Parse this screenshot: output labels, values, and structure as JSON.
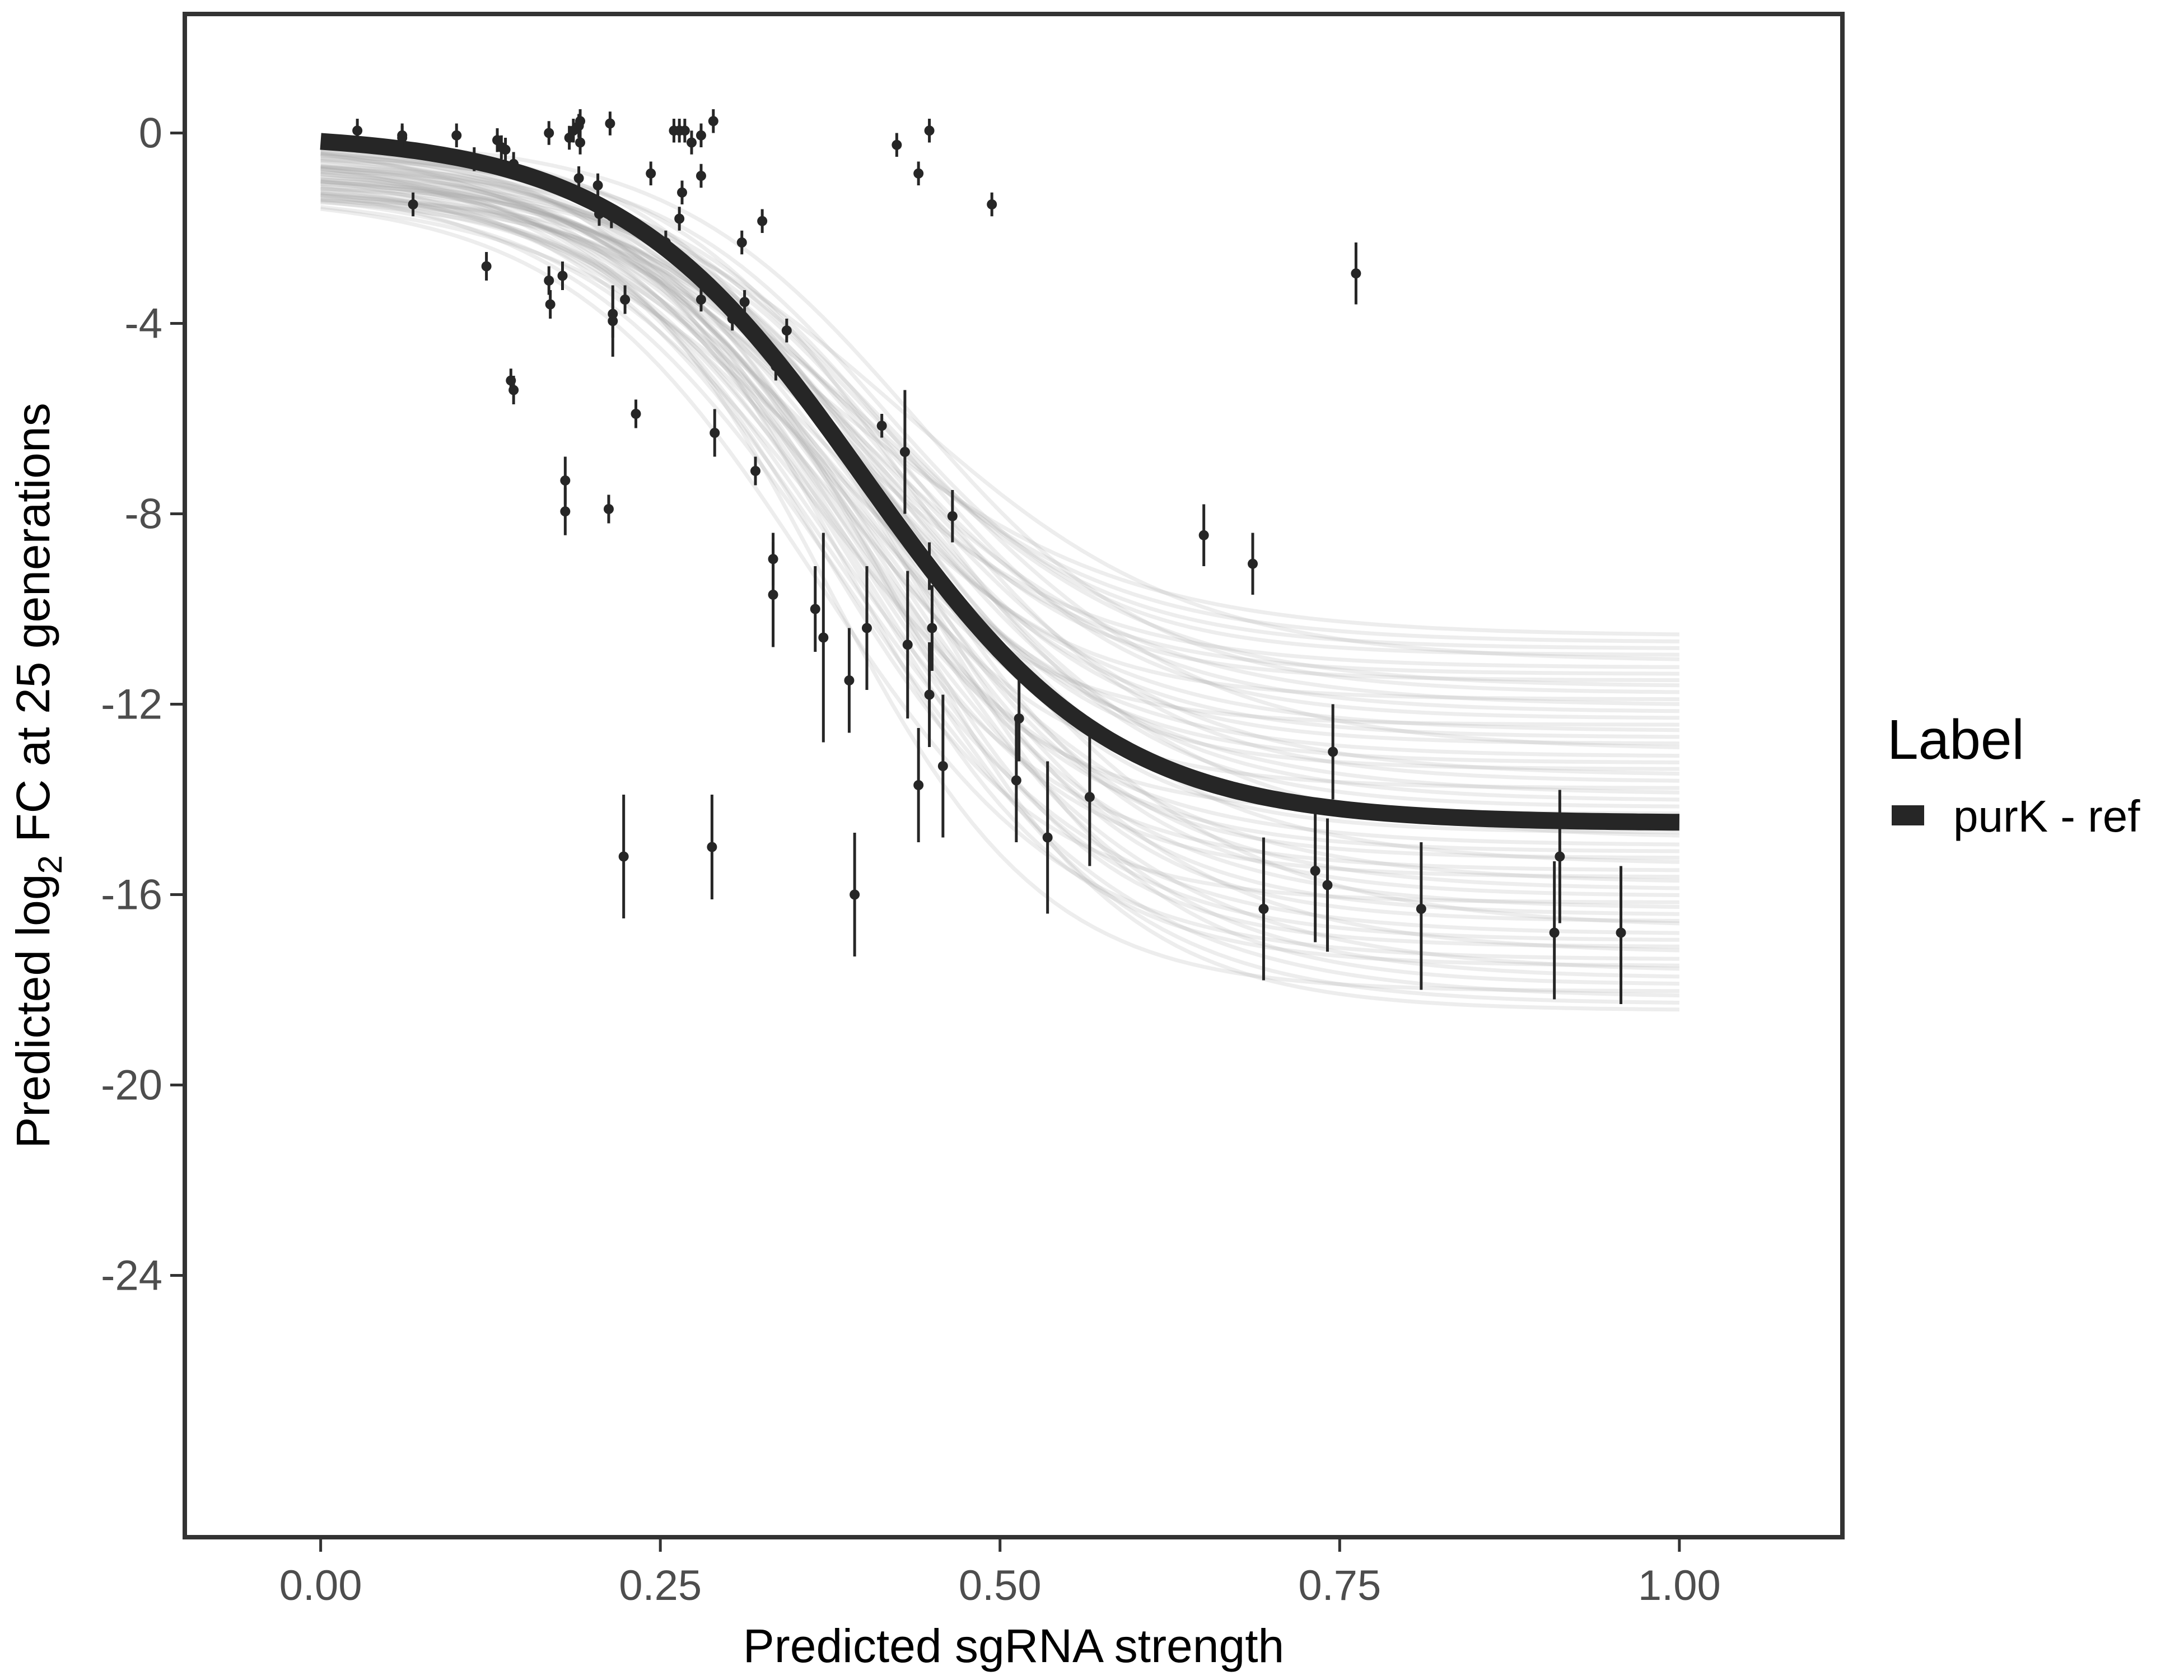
{
  "chart_data": {
    "type": "scatter",
    "title": "",
    "xlabel": "Predicted sgRNA strength",
    "ylabel_prefix": "Predicted  log",
    "ylabel_subscript": "2",
    "ylabel_suffix": " FC at 25 generations",
    "xlim": [
      -0.1,
      1.12
    ],
    "ylim": [
      -29.5,
      2.5
    ],
    "x_ticks": [
      0,
      0.25,
      0.5,
      0.75,
      1
    ],
    "x_tick_labels": [
      "0.00",
      "0.25",
      "0.50",
      "0.75",
      "1.00"
    ],
    "y_ticks": [
      0,
      -4,
      -8,
      -12,
      -16,
      -20,
      -24
    ],
    "y_tick_labels": [
      "0",
      "-4",
      "-8",
      "-12",
      "-16",
      "-20",
      "-24"
    ],
    "grid": false,
    "legend": {
      "title": "Label",
      "position": "right",
      "entries": [
        {
          "label": "purK - ref",
          "color": "#262626"
        }
      ]
    },
    "fit_curve": {
      "name": "purK - ref",
      "color": "#262626",
      "model": "logistic",
      "upper": 0.0,
      "lower": -14.5,
      "midpoint": 0.4,
      "rate": 11.0,
      "x_range": [
        0,
        1
      ]
    },
    "posterior_band": {
      "color": "#a6a6a6",
      "n_curves": 60,
      "lower_at_x1": [
        -10.5,
        -18.5
      ]
    },
    "points": [
      {
        "x": 0.027,
        "y": 0.05,
        "ylo": -0.2,
        "yhi": 0.3
      },
      {
        "x": 0.06,
        "y": -0.05,
        "ylo": -0.3,
        "yhi": 0.2
      },
      {
        "x": 0.06,
        "y": -0.1,
        "ylo": -0.35,
        "yhi": 0.15
      },
      {
        "x": 0.068,
        "y": -1.5,
        "ylo": -1.75,
        "yhi": -1.25
      },
      {
        "x": 0.1,
        "y": -0.05,
        "ylo": -0.3,
        "yhi": 0.2
      },
      {
        "x": 0.113,
        "y": -0.55,
        "ylo": -0.8,
        "yhi": -0.3
      },
      {
        "x": 0.122,
        "y": -2.8,
        "ylo": -3.1,
        "yhi": -2.5
      },
      {
        "x": 0.13,
        "y": -0.15,
        "ylo": -0.4,
        "yhi": 0.1
      },
      {
        "x": 0.133,
        "y": -0.3,
        "ylo": -0.55,
        "yhi": -0.05
      },
      {
        "x": 0.136,
        "y": -0.35,
        "ylo": -0.6,
        "yhi": -0.1
      },
      {
        "x": 0.14,
        "y": -5.2,
        "ylo": -5.45,
        "yhi": -4.95
      },
      {
        "x": 0.142,
        "y": -5.4,
        "ylo": -5.7,
        "yhi": -5.1
      },
      {
        "x": 0.142,
        "y": -0.65,
        "ylo": -0.9,
        "yhi": -0.4
      },
      {
        "x": 0.168,
        "y": 0.0,
        "ylo": -0.25,
        "yhi": 0.25
      },
      {
        "x": 0.168,
        "y": -3.1,
        "ylo": -3.4,
        "yhi": -2.8
      },
      {
        "x": 0.169,
        "y": -3.6,
        "ylo": -3.9,
        "yhi": -3.3
      },
      {
        "x": 0.178,
        "y": -3.0,
        "ylo": -3.3,
        "yhi": -2.7
      },
      {
        "x": 0.18,
        "y": -7.3,
        "ylo": -7.8,
        "yhi": -6.8
      },
      {
        "x": 0.18,
        "y": -7.95,
        "ylo": -8.45,
        "yhi": -7.45
      },
      {
        "x": 0.183,
        "y": -0.1,
        "ylo": -0.35,
        "yhi": 0.15
      },
      {
        "x": 0.186,
        "y": 0.05,
        "ylo": -0.2,
        "yhi": 0.3
      },
      {
        "x": 0.19,
        "y": 0.15,
        "ylo": -0.1,
        "yhi": 0.4
      },
      {
        "x": 0.19,
        "y": -0.95,
        "ylo": -1.2,
        "yhi": -0.7
      },
      {
        "x": 0.191,
        "y": 0.25,
        "ylo": 0.0,
        "yhi": 0.5
      },
      {
        "x": 0.191,
        "y": -0.2,
        "ylo": -0.45,
        "yhi": 0.05
      },
      {
        "x": 0.204,
        "y": -1.1,
        "ylo": -1.35,
        "yhi": -0.85
      },
      {
        "x": 0.205,
        "y": -1.7,
        "ylo": -1.95,
        "yhi": -1.45
      },
      {
        "x": 0.212,
        "y": -7.9,
        "ylo": -8.2,
        "yhi": -7.6
      },
      {
        "x": 0.213,
        "y": 0.2,
        "ylo": -0.05,
        "yhi": 0.45
      },
      {
        "x": 0.214,
        "y": -1.75,
        "ylo": -2.0,
        "yhi": -1.5
      },
      {
        "x": 0.215,
        "y": -3.8,
        "ylo": -4.3,
        "yhi": -3.3
      },
      {
        "x": 0.215,
        "y": -3.95,
        "ylo": -4.7,
        "yhi": -3.2
      },
      {
        "x": 0.223,
        "y": -15.2,
        "ylo": -16.5,
        "yhi": -13.9
      },
      {
        "x": 0.224,
        "y": -3.5,
        "ylo": -3.8,
        "yhi": -3.2
      },
      {
        "x": 0.232,
        "y": -5.9,
        "ylo": -6.2,
        "yhi": -5.6
      },
      {
        "x": 0.243,
        "y": -0.85,
        "ylo": -1.1,
        "yhi": -0.6
      },
      {
        "x": 0.254,
        "y": -2.3,
        "ylo": -2.55,
        "yhi": -2.05
      },
      {
        "x": 0.26,
        "y": 0.05,
        "ylo": -0.2,
        "yhi": 0.3
      },
      {
        "x": 0.264,
        "y": 0.05,
        "ylo": -0.2,
        "yhi": 0.3
      },
      {
        "x": 0.264,
        "y": -1.8,
        "ylo": -2.05,
        "yhi": -1.55
      },
      {
        "x": 0.266,
        "y": -1.25,
        "ylo": -1.5,
        "yhi": -1.0
      },
      {
        "x": 0.268,
        "y": 0.05,
        "ylo": -0.2,
        "yhi": 0.3
      },
      {
        "x": 0.273,
        "y": -0.2,
        "ylo": -0.45,
        "yhi": 0.05
      },
      {
        "x": 0.28,
        "y": -0.05,
        "ylo": -0.3,
        "yhi": 0.2
      },
      {
        "x": 0.28,
        "y": -0.9,
        "ylo": -1.15,
        "yhi": -0.65
      },
      {
        "x": 0.28,
        "y": -3.5,
        "ylo": -3.75,
        "yhi": -3.25
      },
      {
        "x": 0.289,
        "y": 0.25,
        "ylo": 0.0,
        "yhi": 0.5
      },
      {
        "x": 0.288,
        "y": -15.0,
        "ylo": -16.1,
        "yhi": -13.9
      },
      {
        "x": 0.29,
        "y": -6.3,
        "ylo": -6.8,
        "yhi": -5.8
      },
      {
        "x": 0.303,
        "y": -3.9,
        "ylo": -4.15,
        "yhi": -3.65
      },
      {
        "x": 0.31,
        "y": -2.3,
        "ylo": -2.55,
        "yhi": -2.05
      },
      {
        "x": 0.312,
        "y": -3.55,
        "ylo": -3.8,
        "yhi": -3.3
      },
      {
        "x": 0.32,
        "y": -7.1,
        "ylo": -7.4,
        "yhi": -6.8
      },
      {
        "x": 0.325,
        "y": -1.85,
        "ylo": -2.1,
        "yhi": -1.6
      },
      {
        "x": 0.333,
        "y": -8.95,
        "ylo": -9.5,
        "yhi": -8.4
      },
      {
        "x": 0.333,
        "y": -9.7,
        "ylo": -10.8,
        "yhi": -8.6
      },
      {
        "x": 0.335,
        "y": -4.9,
        "ylo": -5.2,
        "yhi": -4.6
      },
      {
        "x": 0.343,
        "y": -4.15,
        "ylo": -4.4,
        "yhi": -3.9
      },
      {
        "x": 0.364,
        "y": -10.0,
        "ylo": -10.9,
        "yhi": -9.1
      },
      {
        "x": 0.37,
        "y": -10.6,
        "ylo": -12.8,
        "yhi": -8.4
      },
      {
        "x": 0.389,
        "y": -11.5,
        "ylo": -12.6,
        "yhi": -10.4
      },
      {
        "x": 0.393,
        "y": -16.0,
        "ylo": -17.3,
        "yhi": -14.7
      },
      {
        "x": 0.402,
        "y": -10.4,
        "ylo": -11.7,
        "yhi": -9.1
      },
      {
        "x": 0.413,
        "y": -6.15,
        "ylo": -6.4,
        "yhi": -5.9
      },
      {
        "x": 0.424,
        "y": -0.25,
        "ylo": -0.5,
        "yhi": 0.0
      },
      {
        "x": 0.43,
        "y": -6.7,
        "ylo": -8.0,
        "yhi": -5.4
      },
      {
        "x": 0.432,
        "y": -10.75,
        "ylo": -12.3,
        "yhi": -9.2
      },
      {
        "x": 0.44,
        "y": -13.7,
        "ylo": -14.9,
        "yhi": -12.5
      },
      {
        "x": 0.44,
        "y": -0.85,
        "ylo": -1.1,
        "yhi": -0.6
      },
      {
        "x": 0.448,
        "y": 0.05,
        "ylo": -0.2,
        "yhi": 0.3
      },
      {
        "x": 0.448,
        "y": -9.1,
        "ylo": -9.6,
        "yhi": -8.6
      },
      {
        "x": 0.448,
        "y": -11.8,
        "ylo": -12.9,
        "yhi": -10.7
      },
      {
        "x": 0.45,
        "y": -10.4,
        "ylo": -11.3,
        "yhi": -9.5
      },
      {
        "x": 0.458,
        "y": -13.3,
        "ylo": -14.8,
        "yhi": -11.8
      },
      {
        "x": 0.465,
        "y": -8.05,
        "ylo": -8.6,
        "yhi": -7.5
      },
      {
        "x": 0.494,
        "y": -1.5,
        "ylo": -1.75,
        "yhi": -1.25
      },
      {
        "x": 0.512,
        "y": -13.6,
        "ylo": -14.9,
        "yhi": -12.3
      },
      {
        "x": 0.514,
        "y": -12.3,
        "ylo": -13.2,
        "yhi": -11.4
      },
      {
        "x": 0.535,
        "y": -14.8,
        "ylo": -16.4,
        "yhi": -13.2
      },
      {
        "x": 0.566,
        "y": -13.95,
        "ylo": -15.4,
        "yhi": -12.5
      },
      {
        "x": 0.65,
        "y": -8.45,
        "ylo": -9.1,
        "yhi": -7.8
      },
      {
        "x": 0.686,
        "y": -9.05,
        "ylo": -9.7,
        "yhi": -8.4
      },
      {
        "x": 0.694,
        "y": -16.3,
        "ylo": -17.8,
        "yhi": -14.8
      },
      {
        "x": 0.732,
        "y": -15.5,
        "ylo": -17.0,
        "yhi": -14.0
      },
      {
        "x": 0.741,
        "y": -15.8,
        "ylo": -17.2,
        "yhi": -14.4
      },
      {
        "x": 0.745,
        "y": -13.0,
        "ylo": -14.0,
        "yhi": -12.0
      },
      {
        "x": 0.762,
        "y": -2.95,
        "ylo": -3.6,
        "yhi": -2.3
      },
      {
        "x": 0.81,
        "y": -16.3,
        "ylo": -18.0,
        "yhi": -14.9
      },
      {
        "x": 0.908,
        "y": -16.8,
        "ylo": -18.2,
        "yhi": -15.3
      },
      {
        "x": 0.912,
        "y": -15.2,
        "ylo": -16.6,
        "yhi": -13.8
      },
      {
        "x": 0.957,
        "y": -16.8,
        "ylo": -18.3,
        "yhi": -15.4
      }
    ]
  }
}
